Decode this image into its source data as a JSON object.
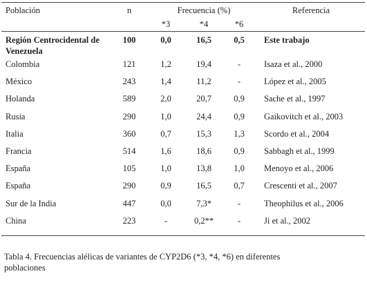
{
  "table": {
    "header": [
      "Población",
      "n",
      "Frecuencia (%)",
      "Referencia"
    ],
    "subheader": [
      "*3",
      "*4",
      "*6"
    ],
    "rows": [
      [
        "Región Centrocidental de Venezuela",
        "100",
        "0,0",
        "16,5",
        "0,5",
        "Este trabajo"
      ],
      [
        "Colombia",
        "121",
        "1,2",
        "19,4",
        "-",
        "Isaza et al., 2000"
      ],
      [
        "México",
        "243",
        "1,4",
        "11,2",
        "-",
        "López et al., 2005"
      ],
      [
        "Holanda",
        "589",
        "2,0",
        "20,7",
        "0,9",
        "Sache et al., 1997"
      ],
      [
        "Rusia",
        "290",
        "1,0",
        "24,4",
        "0,9",
        "Gaikovitch et al., 2003"
      ],
      [
        "Italia",
        "360",
        "0,7",
        "15,3",
        "1,3",
        "Scordo et al., 2004"
      ],
      [
        "Francia",
        "514",
        "1,6",
        "18,6",
        "0,9",
        "Sabbagh et al., 1999"
      ],
      [
        "España",
        "105",
        "1,0",
        "13,8",
        "1,0",
        "Menoyo et al., 2006"
      ],
      [
        "España",
        "290",
        "0,9",
        "16,5",
        "0,7",
        "Crescenti et al., 2007"
      ],
      [
        "Sur de la India",
        "447",
        "0,0",
        "7,3*",
        "-",
        "Theophilus et al., 2006"
      ],
      [
        "China",
        "223",
        "-",
        "0,2**",
        "-",
        "Ji et al., 2002"
      ]
    ]
  },
  "caption": "Tabla 4. Frecuencias alélicas de variantes de CYP2D6 (*3, *4, *6) en diferentes poblaciones"
}
